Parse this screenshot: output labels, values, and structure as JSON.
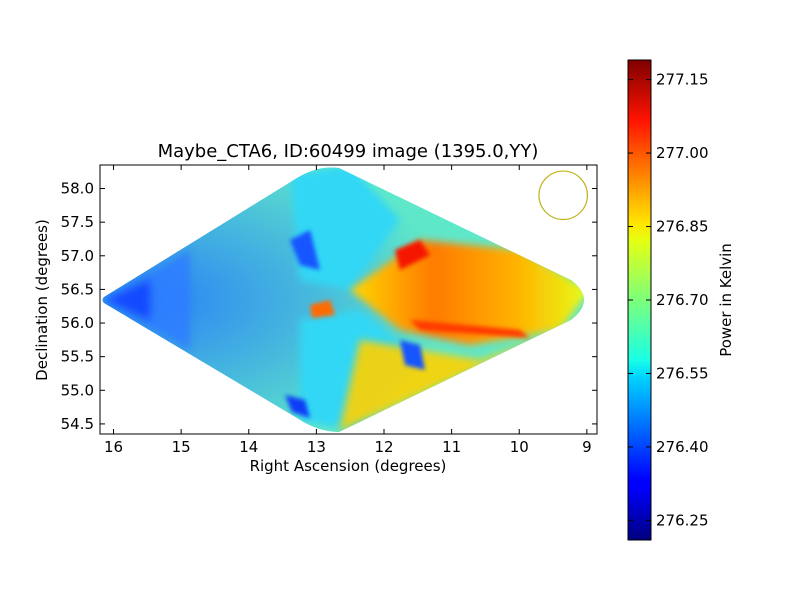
{
  "chart_data": {
    "type": "heatmap",
    "title": "Maybe_CTA6, ID:60499 image (1395.0,YY)",
    "xlabel": "Right Ascension (degrees)",
    "ylabel": "Declination (degrees)",
    "xlim": [
      16.2,
      8.85
    ],
    "ylim": [
      54.35,
      58.35
    ],
    "xticks": [
      16,
      15,
      14,
      13,
      12,
      11,
      10,
      9
    ],
    "yticks": [
      54.5,
      55.0,
      55.5,
      56.0,
      56.5,
      57.0,
      57.5,
      58.0
    ],
    "x_tick_labels": [
      "16",
      "15",
      "14",
      "13",
      "12",
      "11",
      "10",
      "9"
    ],
    "y_tick_labels": [
      "54.5",
      "55.0",
      "55.5",
      "56.0",
      "56.5",
      "57.0",
      "57.5",
      "58.0"
    ],
    "map_extent": {
      "ra_left": 16.2,
      "ra_right": 8.85,
      "ra_center": 12.5,
      "dec_top": 58.35,
      "dec_bottom": 54.35,
      "dec_center": 56.35
    },
    "beam_marker": {
      "ra": 9.35,
      "dec": 57.9,
      "radius_deg": 0.36,
      "color": "#bfb31a"
    },
    "colorbar": {
      "label": "Power in Kelvin",
      "vmin": 276.21,
      "vmax": 277.19,
      "ticks": [
        276.25,
        276.4,
        276.55,
        276.7,
        276.85,
        277.0,
        277.15
      ],
      "tick_labels": [
        "276.25",
        "276.40",
        "276.55",
        "276.70",
        "276.85",
        "277.00",
        "277.15"
      ],
      "colormap": "jet"
    }
  }
}
